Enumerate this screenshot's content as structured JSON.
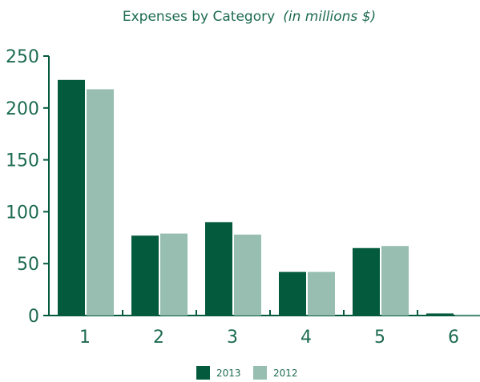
{
  "chart_data": {
    "type": "bar",
    "title": "Expenses by Category",
    "subtitle": "(in millions $)",
    "xlabel": "",
    "ylabel": "",
    "categories": [
      "1",
      "2",
      "3",
      "4",
      "5",
      "6"
    ],
    "series": [
      {
        "name": "2013",
        "color": "#035a3d",
        "values": [
          227,
          77,
          90,
          42,
          65,
          2
        ]
      },
      {
        "name": "2012",
        "color": "#97beb1",
        "values": [
          218,
          79,
          78,
          42,
          67,
          1
        ]
      }
    ],
    "ylim": [
      0,
      250
    ],
    "yticks": [
      0,
      50,
      100,
      150,
      200,
      250
    ],
    "grid": false,
    "legend_position": "bottom"
  }
}
